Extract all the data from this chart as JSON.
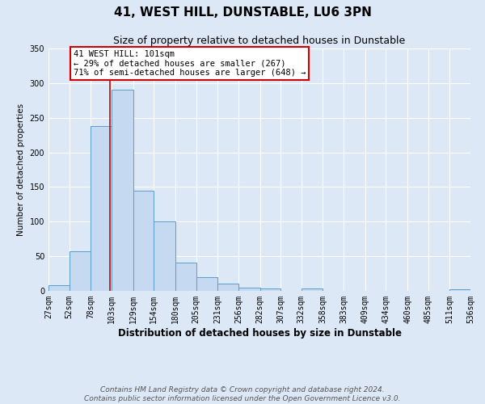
{
  "title": "41, WEST HILL, DUNSTABLE, LU6 3PN",
  "subtitle": "Size of property relative to detached houses in Dunstable",
  "xlabel": "Distribution of detached houses by size in Dunstable",
  "ylabel": "Number of detached properties",
  "bin_edges": [
    27,
    52,
    78,
    103,
    129,
    154,
    180,
    205,
    231,
    256,
    282,
    307,
    332,
    358,
    383,
    409,
    434,
    460,
    485,
    511,
    536
  ],
  "bar_heights": [
    8,
    57,
    238,
    290,
    145,
    100,
    41,
    20,
    11,
    5,
    4,
    0,
    3,
    0,
    0,
    0,
    0,
    0,
    0,
    2
  ],
  "bar_color": "#c5d9f0",
  "bar_edge_color": "#5a9ec9",
  "property_value": 101,
  "vline_color": "#cc0000",
  "annotation_text": "41 WEST HILL: 101sqm\n← 29% of detached houses are smaller (267)\n71% of semi-detached houses are larger (648) →",
  "annotation_box_edge_color": "#cc0000",
  "ylim": [
    0,
    350
  ],
  "yticks": [
    0,
    50,
    100,
    150,
    200,
    250,
    300,
    350
  ],
  "background_color": "#dce8f5",
  "plot_background_color": "#dce8f5",
  "grid_color": "#ffffff",
  "footer_line1": "Contains HM Land Registry data © Crown copyright and database right 2024.",
  "footer_line2": "Contains public sector information licensed under the Open Government Licence v3.0.",
  "title_fontsize": 11,
  "subtitle_fontsize": 9,
  "xlabel_fontsize": 8.5,
  "ylabel_fontsize": 7.5,
  "tick_labelsize": 7,
  "annotation_fontsize": 7.5,
  "footer_fontsize": 6.5
}
